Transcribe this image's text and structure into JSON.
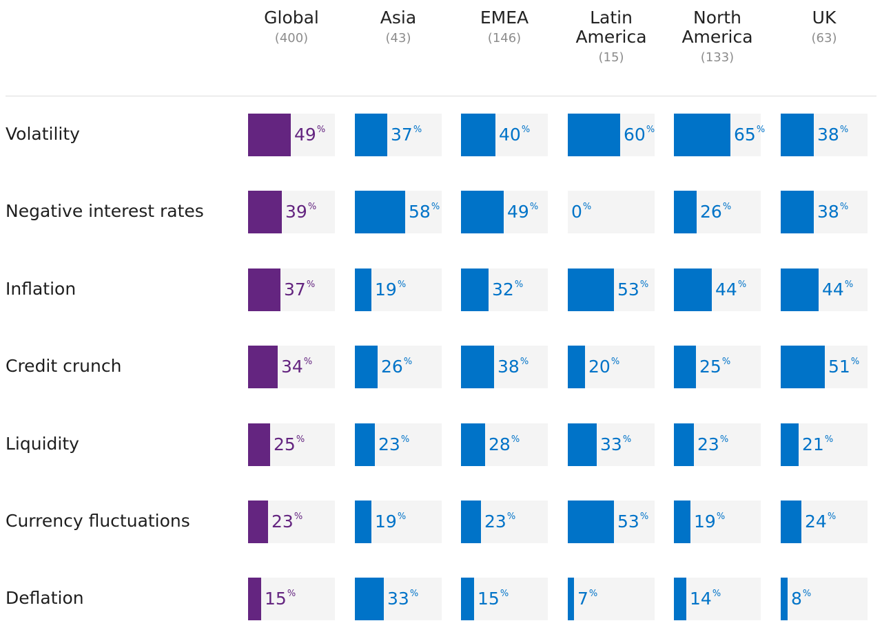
{
  "colors": {
    "global": "#642580",
    "region": "#0073c8",
    "cell_bg": "#f4f4f4"
  },
  "chart_data": {
    "type": "table",
    "title": "",
    "value_suffix": "%",
    "columns": [
      {
        "title": "Global",
        "n": "(400)"
      },
      {
        "title": "Asia",
        "n": "(43)"
      },
      {
        "title": "EMEA",
        "n": "(146)"
      },
      {
        "title": "Latin America",
        "n": "(15)"
      },
      {
        "title": "North America",
        "n": "(133)"
      },
      {
        "title": "UK",
        "n": "(63)"
      }
    ],
    "rows": [
      {
        "label": "Volatility",
        "values": [
          49,
          37,
          40,
          60,
          65,
          38
        ]
      },
      {
        "label": "Negative interest rates",
        "values": [
          39,
          58,
          49,
          0,
          26,
          38
        ]
      },
      {
        "label": "Inflation",
        "values": [
          37,
          19,
          32,
          53,
          44,
          44
        ]
      },
      {
        "label": "Credit crunch",
        "values": [
          34,
          26,
          38,
          20,
          25,
          51
        ]
      },
      {
        "label": "Liquidity",
        "values": [
          25,
          23,
          28,
          33,
          23,
          21
        ]
      },
      {
        "label": "Currency fluctuations",
        "values": [
          23,
          19,
          23,
          53,
          19,
          24
        ]
      },
      {
        "label": "Deflation",
        "values": [
          15,
          33,
          15,
          7,
          14,
          8
        ]
      }
    ]
  }
}
